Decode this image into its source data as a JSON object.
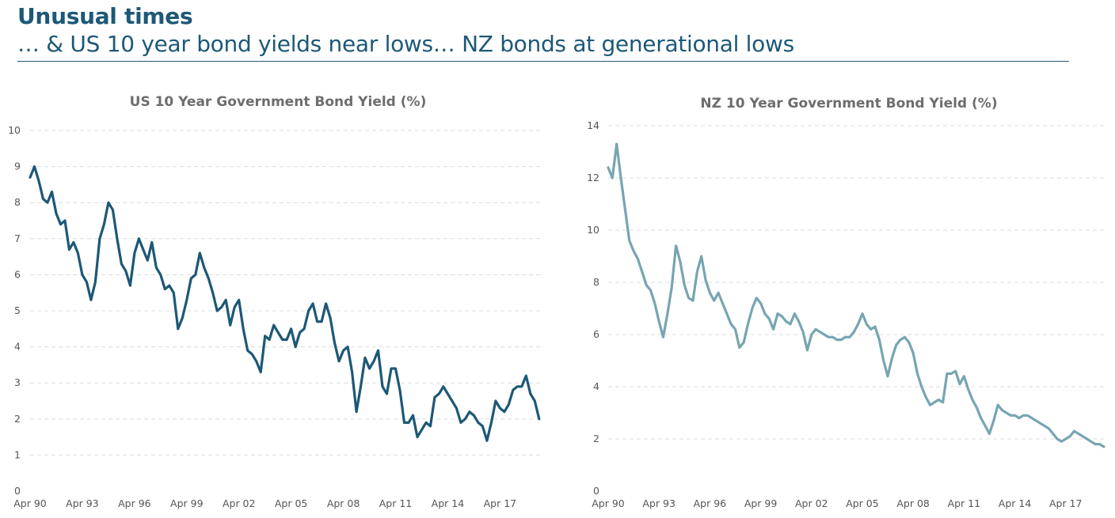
{
  "slide": {
    "title": "Unusual times",
    "subtitle": "… & US 10 year bond yields near lows… NZ bonds at generational lows",
    "accent_color": "#1d5877"
  },
  "chart_data": [
    {
      "type": "line",
      "title": "US 10 Year Government Bond Yield (%)",
      "xlabel": "",
      "ylabel": "",
      "x_ticks": [
        "Apr 90",
        "Apr 93",
        "Apr 96",
        "Apr 99",
        "Apr 02",
        "Apr 05",
        "Apr 08",
        "Apr 11",
        "Apr 14",
        "Apr 17"
      ],
      "xlim": [
        1990.25,
        2019.6
      ],
      "ylim": [
        0,
        10
      ],
      "y_ticks": [
        0,
        1,
        2,
        3,
        4,
        5,
        6,
        7,
        8,
        9,
        10
      ],
      "grid": true,
      "legend": "none",
      "series": [
        {
          "color": "#1d5877",
          "x": [
            1990.25,
            1990.5,
            1990.75,
            1991.0,
            1991.25,
            1991.5,
            1991.75,
            1992.0,
            1992.25,
            1992.5,
            1992.75,
            1993.0,
            1993.25,
            1993.5,
            1993.75,
            1994.0,
            1994.25,
            1994.5,
            1994.75,
            1995.0,
            1995.25,
            1995.5,
            1995.75,
            1996.0,
            1996.25,
            1996.5,
            1996.75,
            1997.0,
            1997.25,
            1997.5,
            1997.75,
            1998.0,
            1998.25,
            1998.5,
            1998.75,
            1999.0,
            1999.25,
            1999.5,
            1999.75,
            2000.0,
            2000.25,
            2000.5,
            2000.75,
            2001.0,
            2001.25,
            2001.5,
            2001.75,
            2002.0,
            2002.25,
            2002.5,
            2002.75,
            2003.0,
            2003.25,
            2003.5,
            2003.75,
            2004.0,
            2004.25,
            2004.5,
            2004.75,
            2005.0,
            2005.25,
            2005.5,
            2005.75,
            2006.0,
            2006.25,
            2006.5,
            2006.75,
            2007.0,
            2007.25,
            2007.5,
            2007.75,
            2008.0,
            2008.25,
            2008.5,
            2008.75,
            2009.0,
            2009.25,
            2009.5,
            2009.75,
            2010.0,
            2010.25,
            2010.5,
            2010.75,
            2011.0,
            2011.25,
            2011.5,
            2011.75,
            2012.0,
            2012.25,
            2012.5,
            2012.75,
            2013.0,
            2013.25,
            2013.5,
            2013.75,
            2014.0,
            2014.25,
            2014.5,
            2014.75,
            2015.0,
            2015.25,
            2015.5,
            2015.75,
            2016.0,
            2016.25,
            2016.5,
            2016.75,
            2017.0,
            2017.25,
            2017.5,
            2017.75,
            2018.0,
            2018.25,
            2018.5,
            2018.75,
            2019.0,
            2019.25,
            2019.5
          ],
          "y": [
            8.7,
            9.0,
            8.6,
            8.1,
            8.0,
            8.3,
            7.7,
            7.4,
            7.5,
            6.7,
            6.9,
            6.6,
            6.0,
            5.8,
            5.3,
            5.8,
            7.0,
            7.4,
            8.0,
            7.8,
            7.0,
            6.3,
            6.1,
            5.7,
            6.6,
            7.0,
            6.7,
            6.4,
            6.9,
            6.2,
            6.0,
            5.6,
            5.7,
            5.5,
            4.5,
            4.8,
            5.3,
            5.9,
            6.0,
            6.6,
            6.2,
            5.9,
            5.5,
            5.0,
            5.1,
            5.3,
            4.6,
            5.1,
            5.3,
            4.5,
            3.9,
            3.8,
            3.6,
            3.3,
            4.3,
            4.2,
            4.6,
            4.4,
            4.2,
            4.2,
            4.5,
            4.0,
            4.4,
            4.5,
            5.0,
            5.2,
            4.7,
            4.7,
            5.2,
            4.8,
            4.1,
            3.6,
            3.9,
            4.0,
            3.3,
            2.2,
            2.9,
            3.7,
            3.4,
            3.6,
            3.9,
            2.9,
            2.7,
            3.4,
            3.4,
            2.8,
            1.9,
            1.9,
            2.1,
            1.5,
            1.7,
            1.9,
            1.8,
            2.6,
            2.7,
            2.9,
            2.7,
            2.5,
            2.3,
            1.9,
            2.0,
            2.2,
            2.1,
            1.9,
            1.8,
            1.4,
            1.9,
            2.5,
            2.3,
            2.2,
            2.4,
            2.8,
            2.9,
            2.9,
            3.2,
            2.7,
            2.5,
            2.0
          ]
        }
      ]
    },
    {
      "type": "line",
      "title": "NZ 10 Year Government Bond Yield (%)",
      "xlabel": "",
      "ylabel": "",
      "x_ticks": [
        "Apr 90",
        "Apr 93",
        "Apr 96",
        "Apr 99",
        "Apr 02",
        "Apr 05",
        "Apr 08",
        "Apr 11",
        "Apr 14",
        "Apr 17"
      ],
      "xlim": [
        1990.25,
        2019.6
      ],
      "ylim": [
        0,
        14
      ],
      "y_ticks": [
        0,
        2,
        4,
        6,
        8,
        10,
        12,
        14
      ],
      "grid": true,
      "legend": "none",
      "series": [
        {
          "color": "#77a5b2",
          "x": [
            1990.25,
            1990.5,
            1990.75,
            1991.0,
            1991.25,
            1991.5,
            1991.75,
            1992.0,
            1992.25,
            1992.5,
            1992.75,
            1993.0,
            1993.25,
            1993.5,
            1993.75,
            1994.0,
            1994.25,
            1994.5,
            1994.75,
            1995.0,
            1995.25,
            1995.5,
            1995.75,
            1996.0,
            1996.25,
            1996.5,
            1996.75,
            1997.0,
            1997.25,
            1997.5,
            1997.75,
            1998.0,
            1998.25,
            1998.5,
            1998.75,
            1999.0,
            1999.25,
            1999.5,
            1999.75,
            2000.0,
            2000.25,
            2000.5,
            2000.75,
            2001.0,
            2001.25,
            2001.5,
            2001.75,
            2002.0,
            2002.25,
            2002.5,
            2002.75,
            2003.0,
            2003.25,
            2003.5,
            2003.75,
            2004.0,
            2004.25,
            2004.5,
            2004.75,
            2005.0,
            2005.25,
            2005.5,
            2005.75,
            2006.0,
            2006.25,
            2006.5,
            2006.75,
            2007.0,
            2007.25,
            2007.5,
            2007.75,
            2008.0,
            2008.25,
            2008.5,
            2008.75,
            2009.0,
            2009.25,
            2009.5,
            2009.75,
            2010.0,
            2010.25,
            2010.5,
            2010.75,
            2011.0,
            2011.25,
            2011.5,
            2011.75,
            2012.0,
            2012.25,
            2012.5,
            2012.75,
            2013.0,
            2013.25,
            2013.5,
            2013.75,
            2014.0,
            2014.25,
            2014.5,
            2014.75,
            2015.0,
            2015.25,
            2015.5,
            2015.75,
            2016.0,
            2016.25,
            2016.5,
            2016.75,
            2017.0,
            2017.25,
            2017.5,
            2017.75,
            2018.0,
            2018.25,
            2018.5,
            2018.75,
            2019.0,
            2019.25,
            2019.5
          ],
          "y": [
            12.4,
            12.0,
            13.3,
            12.0,
            10.8,
            9.6,
            9.2,
            8.9,
            8.4,
            7.9,
            7.7,
            7.2,
            6.5,
            5.9,
            6.8,
            7.8,
            9.4,
            8.8,
            7.9,
            7.4,
            7.3,
            8.4,
            9.0,
            8.1,
            7.6,
            7.3,
            7.6,
            7.2,
            6.8,
            6.4,
            6.2,
            5.5,
            5.7,
            6.4,
            7.0,
            7.4,
            7.2,
            6.8,
            6.6,
            6.2,
            6.8,
            6.7,
            6.5,
            6.4,
            6.8,
            6.5,
            6.1,
            5.4,
            6.0,
            6.2,
            6.1,
            6.0,
            5.9,
            5.9,
            5.8,
            5.8,
            5.9,
            5.9,
            6.1,
            6.4,
            6.8,
            6.4,
            6.2,
            6.3,
            5.8,
            5.0,
            4.4,
            5.1,
            5.6,
            5.8,
            5.9,
            5.7,
            5.3,
            4.5,
            4.0,
            3.6,
            3.3,
            3.4,
            3.5,
            3.4,
            4.5,
            4.5,
            4.6,
            4.1,
            4.4,
            3.9,
            3.5,
            3.2,
            2.8,
            2.5,
            2.2,
            2.7,
            3.3,
            3.1,
            3.0,
            2.9,
            2.9,
            2.8,
            2.9,
            2.9,
            2.8,
            2.7,
            2.6,
            2.5,
            2.4,
            2.2,
            2.0,
            1.9,
            2.0,
            2.1,
            2.3,
            2.2,
            2.1,
            2.0,
            1.9,
            1.8,
            1.8,
            1.7
          ]
        }
      ]
    }
  ]
}
